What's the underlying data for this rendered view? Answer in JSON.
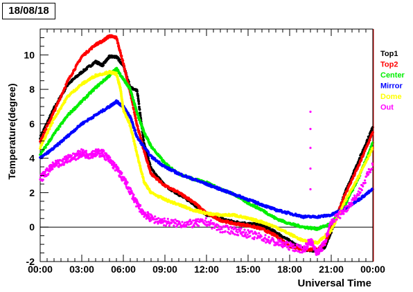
{
  "date_label": "18/08/18",
  "chart_data": {
    "type": "scatter",
    "title": "",
    "xlabel": "Universal Time",
    "ylabel": "Temperature(degree)",
    "xlim": [
      0,
      24
    ],
    "ylim": [
      -2,
      11.5
    ],
    "x_unit": "hours (UT)",
    "x_ticks": [
      "00:00",
      "03:00",
      "06:00",
      "09:00",
      "12:00",
      "15:00",
      "18:00",
      "21:00",
      "00:00"
    ],
    "x_tick_values": [
      0,
      3,
      6,
      9,
      12,
      15,
      18,
      21,
      24
    ],
    "y_ticks": [
      -2,
      0,
      2,
      4,
      6,
      8,
      10
    ],
    "zero_line": true,
    "grid": false,
    "legend_position": "right",
    "series": [
      {
        "name": "Top1",
        "color": "#000000",
        "x": [
          0,
          1,
          2,
          3,
          4,
          4.5,
          5,
          5.5,
          6,
          6.5,
          7,
          7.5,
          8,
          9,
          10,
          11,
          12,
          13,
          14,
          15,
          16,
          17,
          18,
          19,
          20,
          20.5,
          21,
          22,
          23,
          24
        ],
        "y": [
          5.2,
          6.9,
          8.3,
          9.0,
          9.6,
          9.4,
          9.9,
          9.9,
          9.4,
          8.1,
          7.9,
          4.8,
          3.4,
          2.4,
          1.9,
          1.4,
          0.7,
          0.5,
          0.3,
          0.2,
          0.1,
          -0.3,
          -0.8,
          -1.3,
          -1.4,
          -1.2,
          -0.3,
          2.0,
          3.9,
          5.8
        ]
      },
      {
        "name": "Top2",
        "color": "#ff0000",
        "x": [
          0,
          1,
          2,
          3,
          4,
          4.5,
          5,
          5.5,
          6,
          6.5,
          7,
          7.5,
          8,
          9,
          10,
          11,
          12,
          13,
          14,
          15,
          16,
          17,
          18,
          19,
          20,
          20.5,
          21,
          22,
          23,
          24
        ],
        "y": [
          5.0,
          6.7,
          8.5,
          9.9,
          10.6,
          10.8,
          11.1,
          11.0,
          9.5,
          7.8,
          5.9,
          4.4,
          3.1,
          2.4,
          2.0,
          1.5,
          0.8,
          0.4,
          0.2,
          0.1,
          -0.1,
          -0.5,
          -1.1,
          -1.3,
          -1.3,
          -1.0,
          -0.1,
          1.9,
          3.6,
          5.5
        ]
      },
      {
        "name": "Center",
        "color": "#00ee00",
        "x": [
          0,
          1,
          2,
          3,
          4,
          5,
          5.5,
          6,
          6.5,
          7,
          7.5,
          8,
          9,
          10,
          11,
          12,
          13,
          14,
          15,
          16,
          17,
          18,
          19,
          20,
          21,
          22,
          23,
          24
        ],
        "y": [
          4.2,
          5.4,
          6.5,
          7.3,
          8.1,
          8.8,
          9.2,
          8.6,
          8.0,
          6.6,
          5.5,
          4.7,
          3.7,
          3.1,
          2.8,
          2.6,
          2.2,
          1.9,
          1.4,
          1.0,
          0.5,
          0.2,
          0.0,
          -0.1,
          0.2,
          1.3,
          2.9,
          4.9
        ]
      },
      {
        "name": "Mirror",
        "color": "#0000ff",
        "x": [
          0,
          1,
          2,
          3,
          4,
          5,
          5.5,
          6,
          6.5,
          7,
          8,
          9,
          10,
          11,
          12,
          13,
          14,
          15,
          16,
          17,
          18,
          19,
          20,
          21,
          22,
          23,
          24
        ],
        "y": [
          4.0,
          4.6,
          5.3,
          6.0,
          6.5,
          7.0,
          7.3,
          7.0,
          6.4,
          5.2,
          4.1,
          3.5,
          3.1,
          2.8,
          2.5,
          2.2,
          1.9,
          1.6,
          1.3,
          1.0,
          0.8,
          0.6,
          0.6,
          0.7,
          1.1,
          1.6,
          2.2
        ]
      },
      {
        "name": "Dome",
        "color": "#ffff00",
        "x": [
          0,
          1,
          2,
          3,
          4,
          5,
          5.5,
          5.8,
          6,
          6.5,
          7,
          7.5,
          8,
          9,
          10,
          11,
          12,
          13,
          14,
          15,
          16,
          17,
          18,
          19,
          20,
          21,
          22,
          23,
          24
        ],
        "y": [
          4.6,
          6.3,
          7.6,
          8.3,
          8.8,
          9.0,
          8.9,
          8.0,
          6.8,
          5.9,
          4.2,
          2.6,
          2.0,
          1.6,
          1.3,
          1.0,
          0.8,
          0.7,
          0.7,
          0.5,
          0.3,
          0.0,
          -0.4,
          -0.8,
          -0.9,
          -0.2,
          1.5,
          3.0,
          4.6
        ]
      },
      {
        "name": "Out",
        "color": "#ff00ff",
        "x": [
          0,
          0.5,
          1,
          1.5,
          2,
          2.5,
          3,
          3.5,
          4,
          4.5,
          5,
          5.5,
          6,
          6.5,
          7,
          7.5,
          8,
          9,
          10,
          11,
          12,
          13,
          14,
          15,
          16,
          17,
          18,
          19,
          19.5,
          20,
          20.5,
          21,
          22,
          23,
          24
        ],
        "y": [
          2.8,
          3.2,
          3.6,
          3.7,
          4.0,
          4.1,
          4.3,
          4.2,
          4.3,
          4.3,
          3.9,
          3.4,
          2.8,
          2.1,
          1.3,
          0.8,
          0.5,
          0.3,
          0.2,
          0.2,
          0.3,
          -0.1,
          -0.2,
          -0.4,
          -0.6,
          -0.9,
          -1.1,
          -1.3,
          -0.8,
          -1.5,
          -1.0,
          0.3,
          1.0,
          2.0,
          3.6
        ]
      },
      {
        "name": "",
        "color": "#ff00ff",
        "x": [
          19.5,
          19.5,
          19.5,
          19.5,
          19.5
        ],
        "y": [
          6.7,
          5.7,
          4.6,
          3.4,
          2.2
        ]
      }
    ]
  }
}
